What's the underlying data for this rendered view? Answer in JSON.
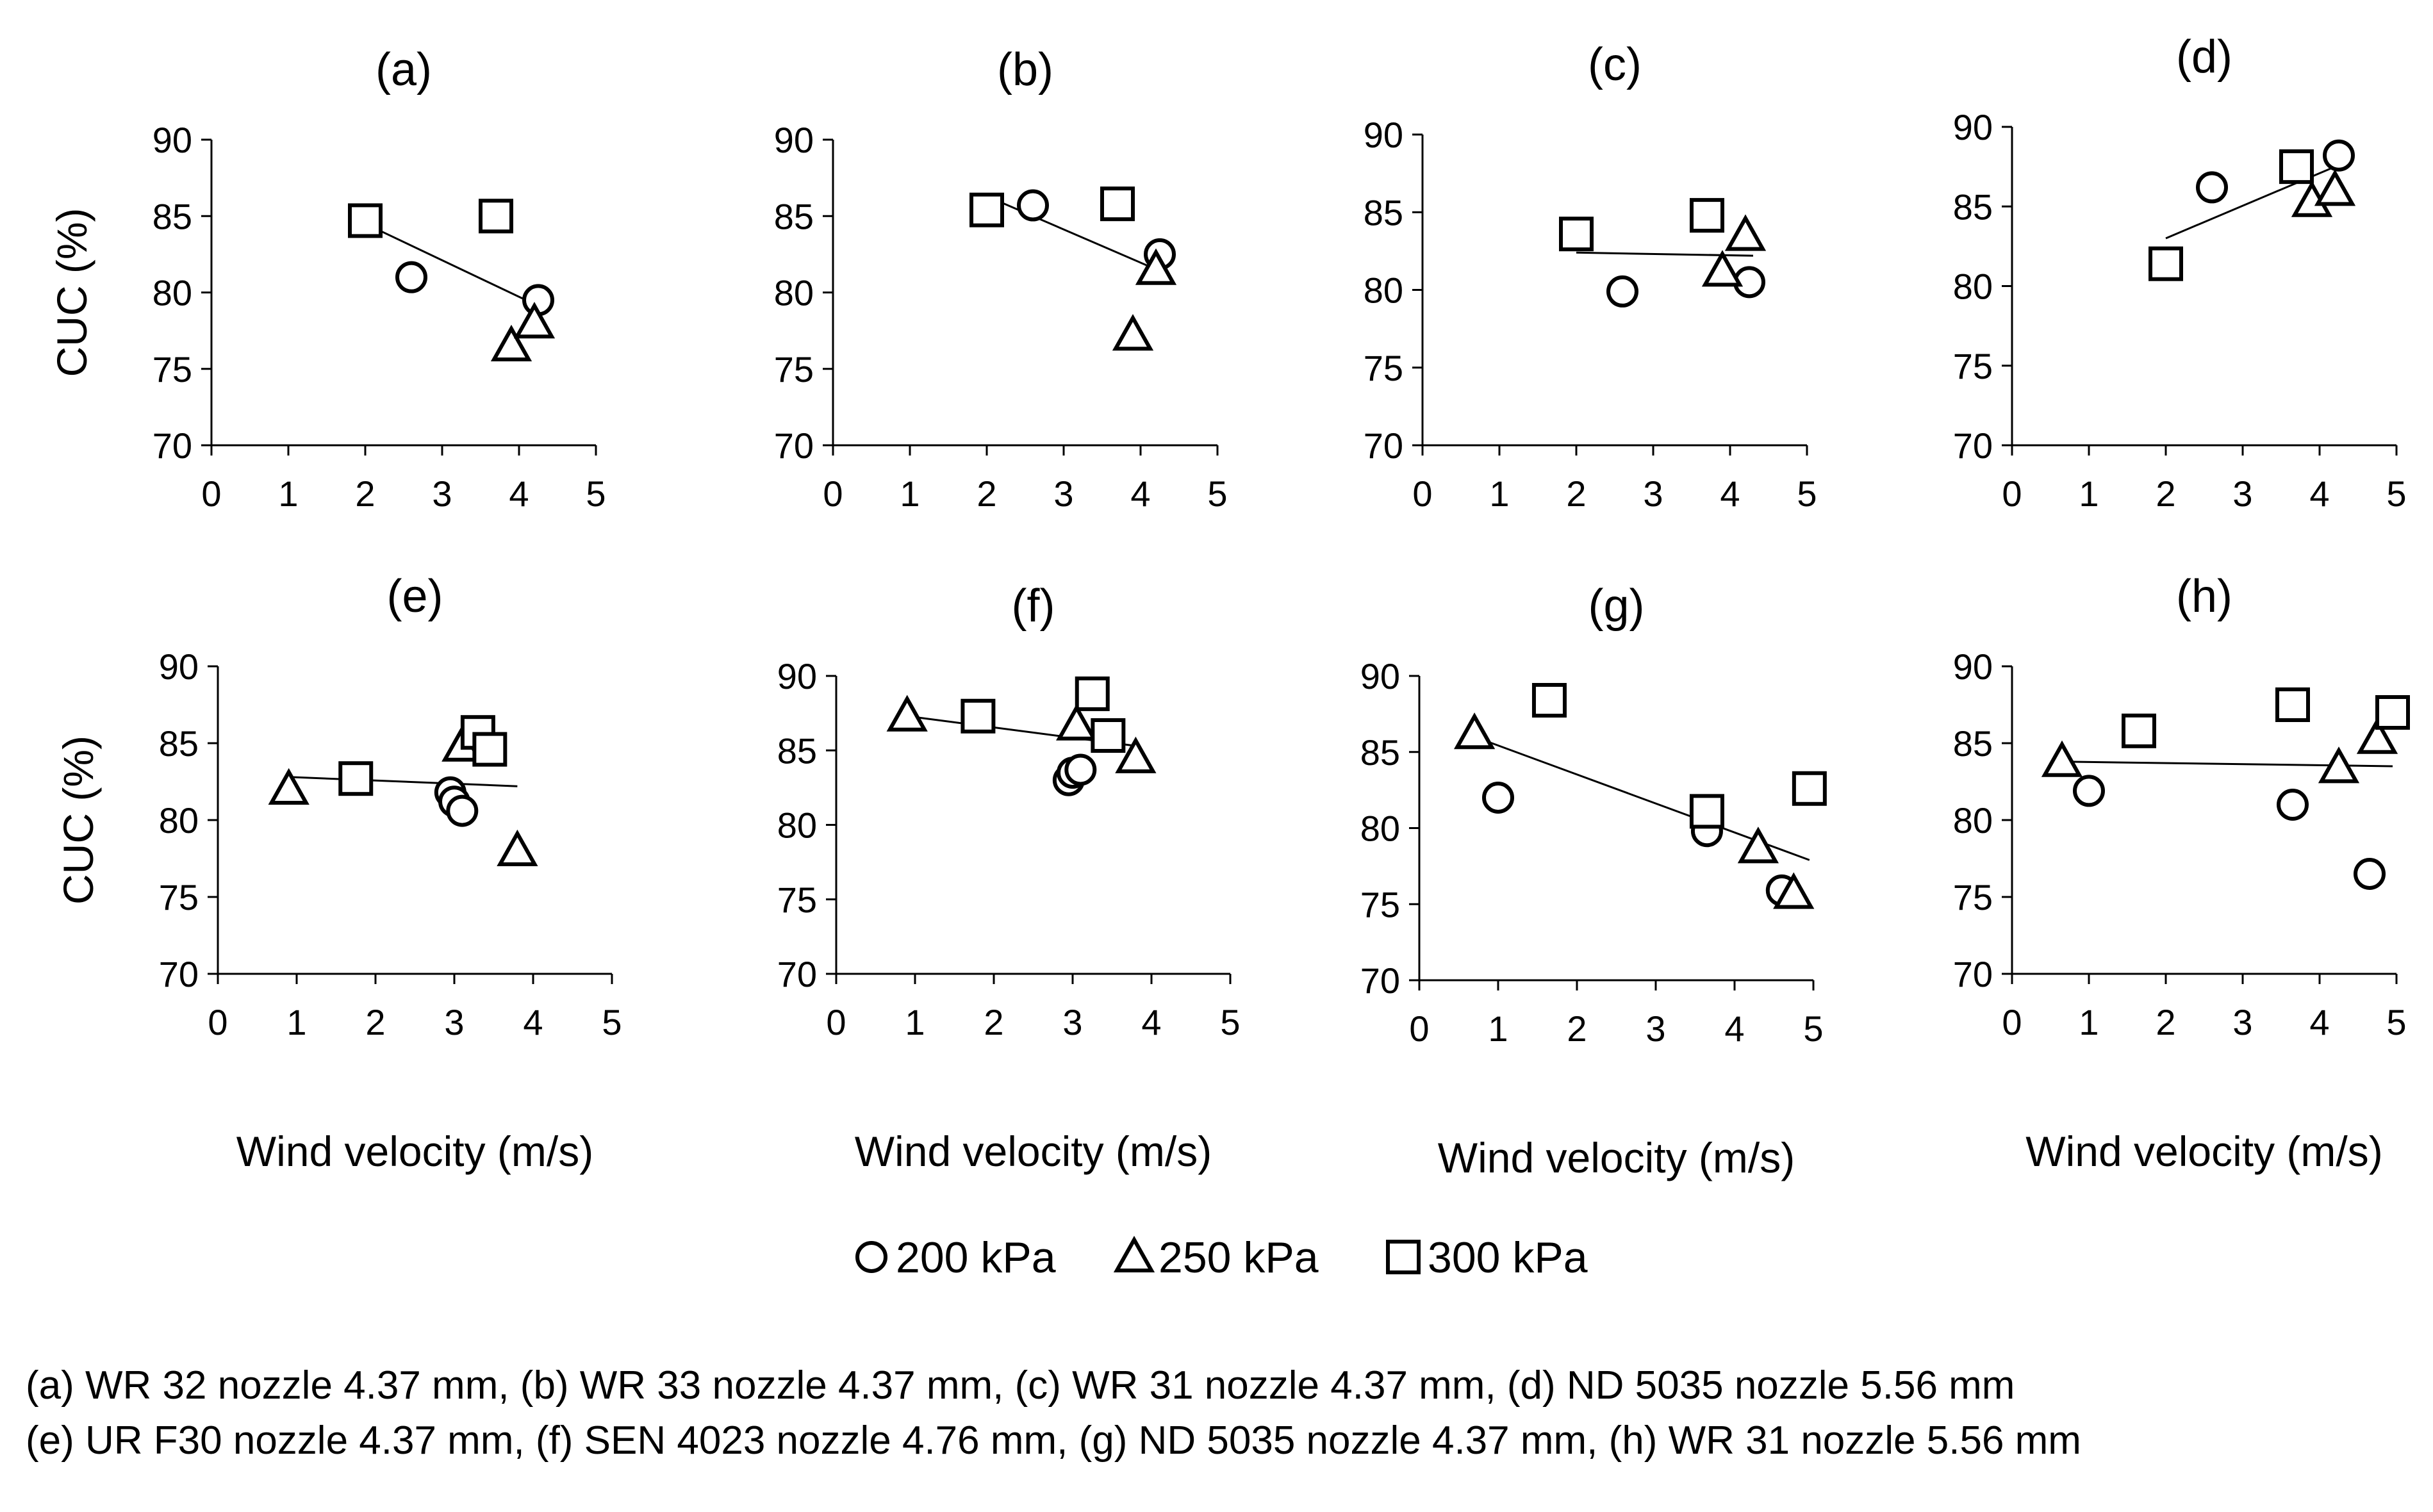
{
  "chart_data": [
    {
      "type": "scatter",
      "title": "(a)",
      "ylabel": "CUC (%)",
      "xlabel": "",
      "xlim": [
        0,
        5
      ],
      "ylim": [
        70,
        90
      ],
      "x_ticks": [
        "0",
        "1",
        "2",
        "3",
        "4",
        "5"
      ],
      "y_ticks": [
        "70",
        "75",
        "80",
        "85",
        "90"
      ],
      "series": [
        {
          "name": "200 kPa",
          "marker": "circle",
          "points": [
            [
              2.6,
              81.0
            ],
            [
              4.25,
              79.5
            ]
          ]
        },
        {
          "name": "250 kPa",
          "marker": "triangle",
          "points": [
            [
              3.9,
              76.5
            ],
            [
              4.2,
              78.0
            ]
          ]
        },
        {
          "name": "300 kPa",
          "marker": "square",
          "points": [
            [
              2.0,
              84.7
            ],
            [
              3.7,
              85.0
            ]
          ]
        }
      ],
      "trendline": [
        [
          2.0,
          84.5
        ],
        [
          4.3,
          79.0
        ]
      ]
    },
    {
      "type": "scatter",
      "title": "(b)",
      "ylabel": "",
      "xlabel": "",
      "xlim": [
        0,
        5
      ],
      "ylim": [
        70,
        90
      ],
      "x_ticks": [
        "0",
        "1",
        "2",
        "3",
        "4",
        "5"
      ],
      "y_ticks": [
        "70",
        "75",
        "80",
        "85",
        "90"
      ],
      "series": [
        {
          "name": "200 kPa",
          "marker": "circle",
          "points": [
            [
              2.6,
              85.7
            ],
            [
              4.25,
              82.5
            ]
          ]
        },
        {
          "name": "250 kPa",
          "marker": "triangle",
          "points": [
            [
              3.9,
              77.2
            ],
            [
              4.2,
              81.5
            ]
          ]
        },
        {
          "name": "300 kPa",
          "marker": "square",
          "points": [
            [
              2.0,
              85.4
            ],
            [
              3.7,
              85.8
            ]
          ]
        }
      ],
      "trendline": [
        [
          2.0,
          86.3
        ],
        [
          4.3,
          81.3
        ]
      ]
    },
    {
      "type": "scatter",
      "title": "(c)",
      "ylabel": "",
      "xlabel": "",
      "xlim": [
        0,
        5
      ],
      "ylim": [
        70,
        90
      ],
      "x_ticks": [
        "0",
        "1",
        "2",
        "3",
        "4",
        "5"
      ],
      "y_ticks": [
        "70",
        "75",
        "80",
        "85",
        "90"
      ],
      "series": [
        {
          "name": "200 kPa",
          "marker": "circle",
          "points": [
            [
              2.6,
              79.9
            ],
            [
              4.25,
              80.5
            ]
          ]
        },
        {
          "name": "250 kPa",
          "marker": "triangle",
          "points": [
            [
              3.9,
              81.2
            ],
            [
              4.2,
              83.5
            ]
          ]
        },
        {
          "name": "300 kPa",
          "marker": "square",
          "points": [
            [
              2.0,
              83.6
            ],
            [
              3.7,
              84.8
            ]
          ]
        }
      ],
      "trendline": [
        [
          2.0,
          82.4
        ],
        [
          4.3,
          82.2
        ]
      ]
    },
    {
      "type": "scatter",
      "title": "(d)",
      "ylabel": "",
      "xlabel": "",
      "xlim": [
        0,
        5
      ],
      "ylim": [
        70,
        90
      ],
      "x_ticks": [
        "0",
        "1",
        "2",
        "3",
        "4",
        "5"
      ],
      "y_ticks": [
        "70",
        "75",
        "80",
        "85",
        "90"
      ],
      "series": [
        {
          "name": "200 kPa",
          "marker": "circle",
          "points": [
            [
              2.6,
              86.2
            ],
            [
              4.25,
              88.2
            ]
          ]
        },
        {
          "name": "250 kPa",
          "marker": "triangle",
          "points": [
            [
              3.9,
              85.3
            ],
            [
              4.2,
              86.0
            ]
          ]
        },
        {
          "name": "300 kPa",
          "marker": "square",
          "points": [
            [
              2.0,
              81.4
            ],
            [
              3.7,
              87.5
            ]
          ]
        }
      ],
      "trendline": [
        [
          2.0,
          83.0
        ],
        [
          4.3,
          87.7
        ]
      ]
    },
    {
      "type": "scatter",
      "title": "(e)",
      "ylabel": "CUC (%)",
      "xlabel": "Wind velocity (m/s)",
      "xlim": [
        0,
        5
      ],
      "ylim": [
        70,
        90
      ],
      "x_ticks": [
        "0",
        "1",
        "2",
        "3",
        "4",
        "5"
      ],
      "y_ticks": [
        "70",
        "75",
        "80",
        "85",
        "90"
      ],
      "series": [
        {
          "name": "200 kPa",
          "marker": "circle",
          "points": [
            [
              2.95,
              81.8
            ],
            [
              3.0,
              81.2
            ],
            [
              3.1,
              80.6
            ]
          ]
        },
        {
          "name": "250 kPa",
          "marker": "triangle",
          "points": [
            [
              0.9,
              82.0
            ],
            [
              3.1,
              84.8
            ],
            [
              3.8,
              78.0
            ]
          ]
        },
        {
          "name": "300 kPa",
          "marker": "square",
          "points": [
            [
              1.75,
              82.7
            ],
            [
              3.3,
              85.7
            ],
            [
              3.45,
              84.6
            ]
          ]
        }
      ],
      "trendline": [
        [
          0.9,
          82.8
        ],
        [
          3.8,
          82.2
        ]
      ]
    },
    {
      "type": "scatter",
      "title": "(f)",
      "ylabel": "",
      "xlabel": "Wind velocity (m/s)",
      "xlim": [
        0,
        5
      ],
      "ylim": [
        70,
        90
      ],
      "x_ticks": [
        "0",
        "1",
        "2",
        "3",
        "4",
        "5"
      ],
      "y_ticks": [
        "70",
        "75",
        "80",
        "85",
        "90"
      ],
      "series": [
        {
          "name": "200 kPa",
          "marker": "circle",
          "points": [
            [
              2.95,
              83.0
            ],
            [
              3.0,
              83.5
            ],
            [
              3.1,
              83.7
            ]
          ]
        },
        {
          "name": "250 kPa",
          "marker": "triangle",
          "points": [
            [
              0.9,
              87.3
            ],
            [
              3.05,
              86.7
            ],
            [
              3.8,
              84.5
            ]
          ]
        },
        {
          "name": "300 kPa",
          "marker": "square",
          "points": [
            [
              1.8,
              87.3
            ],
            [
              3.25,
              88.8
            ],
            [
              3.45,
              86.0
            ]
          ]
        }
      ],
      "trendline": [
        [
          0.9,
          87.3
        ],
        [
          3.8,
          85.3
        ]
      ]
    },
    {
      "type": "scatter",
      "title": "(g)",
      "ylabel": "",
      "xlabel": "Wind velocity (m/s)",
      "xlim": [
        0,
        5
      ],
      "ylim": [
        70,
        90
      ],
      "x_ticks": [
        "0",
        "1",
        "2",
        "3",
        "4",
        "5"
      ],
      "y_ticks": [
        "70",
        "75",
        "80",
        "85",
        "90"
      ],
      "series": [
        {
          "name": "200 kPa",
          "marker": "circle",
          "points": [
            [
              1.0,
              82.0
            ],
            [
              3.65,
              79.8
            ],
            [
              4.6,
              75.9
            ]
          ]
        },
        {
          "name": "250 kPa",
          "marker": "triangle",
          "points": [
            [
              0.7,
              86.2
            ],
            [
              4.3,
              78.7
            ],
            [
              4.75,
              75.7
            ]
          ]
        },
        {
          "name": "300 kPa",
          "marker": "square",
          "points": [
            [
              1.65,
              88.4
            ],
            [
              3.65,
              81.1
            ],
            [
              4.95,
              82.6
            ]
          ]
        }
      ],
      "trendline": [
        [
          0.7,
          86.0
        ],
        [
          4.95,
          77.9
        ]
      ]
    },
    {
      "type": "scatter",
      "title": "(h)",
      "ylabel": "",
      "xlabel": "Wind velocity (m/s)",
      "xlim": [
        0,
        5
      ],
      "ylim": [
        70,
        90
      ],
      "x_ticks": [
        "0",
        "1",
        "2",
        "3",
        "4",
        "5"
      ],
      "y_ticks": [
        "70",
        "75",
        "80",
        "85",
        "90"
      ],
      "series": [
        {
          "name": "200 kPa",
          "marker": "circle",
          "points": [
            [
              1.0,
              81.9
            ],
            [
              3.65,
              81.0
            ],
            [
              4.65,
              76.5
            ]
          ]
        },
        {
          "name": "250 kPa",
          "marker": "triangle",
          "points": [
            [
              0.65,
              83.8
            ],
            [
              4.25,
              83.4
            ],
            [
              4.75,
              85.3
            ]
          ]
        },
        {
          "name": "300 kPa",
          "marker": "square",
          "points": [
            [
              1.65,
              85.8
            ],
            [
              3.65,
              87.5
            ],
            [
              4.95,
              87.0
            ]
          ]
        }
      ],
      "trendline": [
        [
          0.65,
          83.8
        ],
        [
          4.95,
          83.5
        ]
      ]
    }
  ],
  "legend": [
    {
      "label": "200 kPa",
      "marker": "circle"
    },
    {
      "label": "250 kPa",
      "marker": "triangle"
    },
    {
      "label": "300 kPa",
      "marker": "square"
    }
  ],
  "caption": {
    "line1": "(a)  WR 32 nozzle 4.37 mm,  (b)  WR 33 nozzle 4.37 mm,  (c)  WR 31 nozzle 4.37 mm,  (d) ND 5035 nozzle 5.56 mm",
    "line2": "(e) UR F30 nozzle 4.37 mm, (f) SEN 4023 nozzle 4.76 mm, (g) ND 5035 nozzle 4.37 mm, (h) WR 31 nozzle 5.56 mm"
  }
}
